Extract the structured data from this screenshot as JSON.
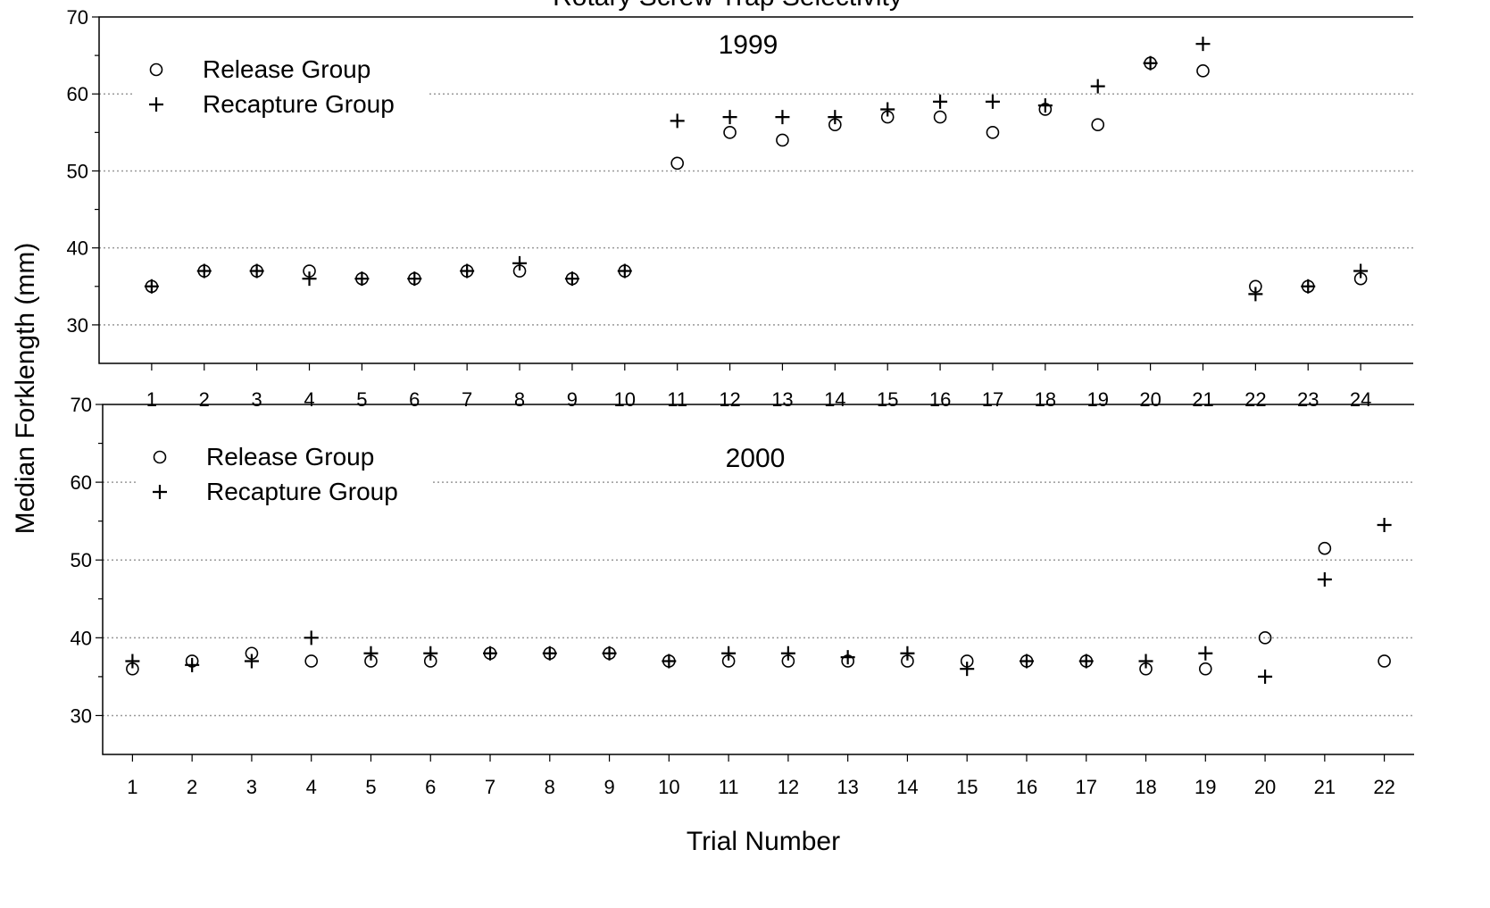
{
  "chart_data": [
    {
      "type": "scatter",
      "title": "Rotary Screw Trap Selectivity",
      "annotation": "1999",
      "y_label": "Median Forklength (mm)",
      "x": [
        1,
        2,
        3,
        4,
        5,
        6,
        7,
        8,
        9,
        10,
        11,
        12,
        13,
        14,
        15,
        16,
        17,
        18,
        19,
        20,
        21,
        22,
        23,
        24
      ],
      "series": [
        {
          "name": "Release Group",
          "color": "#000000",
          "marker": "circle",
          "values": [
            35,
            37,
            37,
            37,
            36,
            36,
            37,
            37,
            36,
            37,
            51,
            55,
            54,
            56,
            57,
            57,
            55,
            58,
            56,
            64,
            63,
            35,
            35,
            36
          ]
        },
        {
          "name": "Recapture Group",
          "color": "#000000",
          "marker": "plus",
          "values": [
            35,
            37,
            37,
            36,
            36,
            36,
            37,
            38,
            36,
            37,
            56.5,
            57,
            57,
            57,
            58,
            59,
            59,
            58.5,
            61,
            64,
            66.5,
            34,
            35,
            37
          ]
        }
      ],
      "xlim": [
        0,
        25
      ],
      "xticks": [
        1,
        2,
        3,
        4,
        5,
        6,
        7,
        8,
        9,
        10,
        11,
        12,
        13,
        14,
        15,
        16,
        17,
        18,
        19,
        20,
        21,
        22,
        23,
        24
      ],
      "ylim": [
        25,
        70
      ],
      "yticks": [
        30,
        40,
        50,
        60,
        70
      ],
      "yminorticks": [
        35,
        45,
        55,
        65
      ],
      "grid": true,
      "legend": "upper left"
    },
    {
      "type": "scatter",
      "annotation": "2000",
      "x_label": "Trial Number",
      "x": [
        1,
        2,
        3,
        4,
        5,
        6,
        7,
        8,
        9,
        10,
        11,
        12,
        13,
        14,
        15,
        16,
        17,
        18,
        19,
        20,
        21,
        22
      ],
      "series": [
        {
          "name": "Release Group",
          "color": "#000000",
          "marker": "circle",
          "values": [
            36,
            37,
            38,
            37,
            37,
            37,
            38,
            38,
            38,
            37,
            37,
            37,
            37,
            37,
            37,
            37,
            37,
            36,
            36,
            40,
            51.5,
            37
          ]
        },
        {
          "name": "Recapture Group",
          "color": "#000000",
          "marker": "plus",
          "values": [
            37,
            36.5,
            37,
            40,
            38,
            38,
            38,
            38,
            38,
            37,
            38,
            38,
            37.5,
            38,
            36,
            37,
            37,
            37,
            38,
            35,
            47.5,
            54.5
          ]
        }
      ],
      "xlim": [
        0.5,
        22.5
      ],
      "xticks": [
        1,
        2,
        3,
        4,
        5,
        6,
        7,
        8,
        9,
        10,
        11,
        12,
        13,
        14,
        15,
        16,
        17,
        18,
        19,
        20,
        21,
        22
      ],
      "ylim": [
        25,
        70
      ],
      "yticks": [
        30,
        40,
        50,
        60,
        70
      ],
      "yminorticks": [
        35,
        45,
        55,
        65
      ],
      "grid": true,
      "legend": "upper left"
    }
  ]
}
